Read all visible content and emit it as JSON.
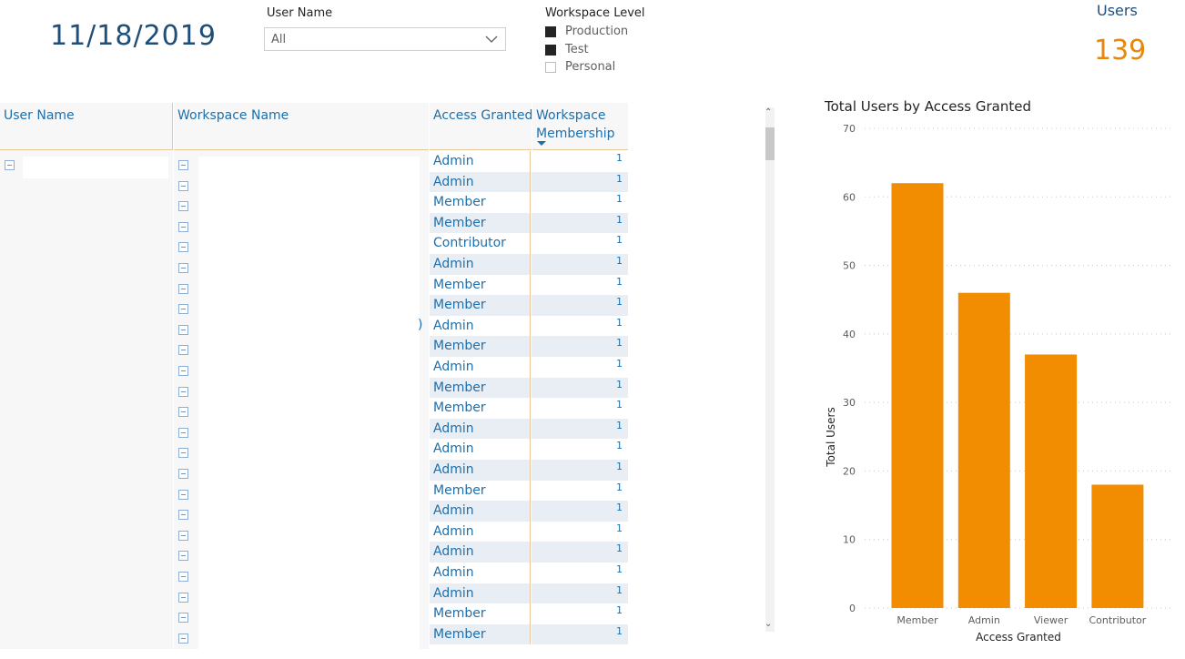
{
  "date_card": {
    "value": "11/18/2019"
  },
  "user_name_slicer": {
    "title": "User Name",
    "selected": "All"
  },
  "workspace_level_slicer": {
    "title": "Workspace Level",
    "options": [
      {
        "label": "Production",
        "checked": true
      },
      {
        "label": "Test",
        "checked": true
      },
      {
        "label": "Personal",
        "checked": false
      }
    ]
  },
  "users_card": {
    "label": "Users",
    "value": "139"
  },
  "matrix": {
    "headers": {
      "user_name": "User Name",
      "workspace_name": "Workspace Name",
      "access_granted": "Access Granted",
      "workspace_membership": "Workspace Membership"
    },
    "sort": {
      "column": "workspace_membership",
      "direction": "descending"
    },
    "truncated_glyph": ")",
    "rows": [
      {
        "access": "Admin",
        "membership": "1"
      },
      {
        "access": "Admin",
        "membership": "1"
      },
      {
        "access": "Member",
        "membership": "1"
      },
      {
        "access": "Member",
        "membership": "1"
      },
      {
        "access": "Contributor",
        "membership": "1"
      },
      {
        "access": "Admin",
        "membership": "1"
      },
      {
        "access": "Member",
        "membership": "1"
      },
      {
        "access": "Member",
        "membership": "1"
      },
      {
        "access": "Admin",
        "membership": "1"
      },
      {
        "access": "Member",
        "membership": "1"
      },
      {
        "access": "Admin",
        "membership": "1"
      },
      {
        "access": "Member",
        "membership": "1"
      },
      {
        "access": "Member",
        "membership": "1"
      },
      {
        "access": "Admin",
        "membership": "1"
      },
      {
        "access": "Admin",
        "membership": "1"
      },
      {
        "access": "Admin",
        "membership": "1"
      },
      {
        "access": "Member",
        "membership": "1"
      },
      {
        "access": "Admin",
        "membership": "1"
      },
      {
        "access": "Admin",
        "membership": "1"
      },
      {
        "access": "Admin",
        "membership": "1"
      },
      {
        "access": "Admin",
        "membership": "1"
      },
      {
        "access": "Admin",
        "membership": "1"
      },
      {
        "access": "Member",
        "membership": "1"
      },
      {
        "access": "Member",
        "membership": "1"
      }
    ]
  },
  "colors": {
    "accent": "#e8870e",
    "header_text": "#1e6fab",
    "title_blue": "#1f4e79",
    "bar": "#f28c00"
  },
  "chart_data": {
    "type": "bar",
    "title": "Total Users by Access Granted",
    "xlabel": "Access Granted",
    "ylabel": "Total Users",
    "categories": [
      "Member",
      "Admin",
      "Viewer",
      "Contributor"
    ],
    "values": [
      62,
      46,
      37,
      18
    ],
    "ylim": [
      0,
      70
    ],
    "yticks": [
      0,
      10,
      20,
      30,
      40,
      50,
      60,
      70
    ],
    "grid": true
  }
}
